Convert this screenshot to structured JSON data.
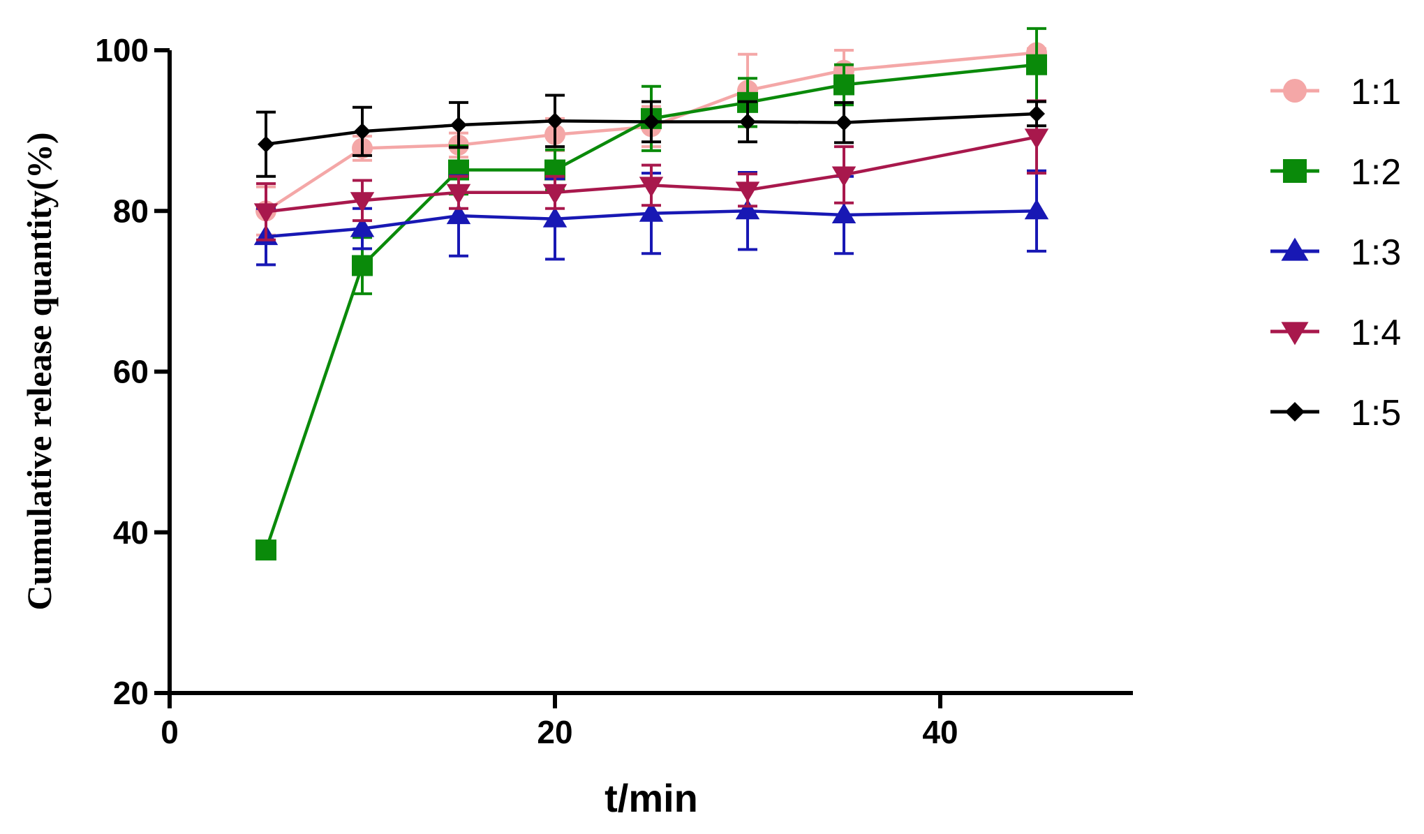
{
  "chart_data": {
    "type": "line",
    "title": "",
    "xlabel": "t/min",
    "ylabel": "Cumulative release quantity(%)",
    "xlim": [
      0,
      50
    ],
    "ylim": [
      20,
      100
    ],
    "xticks": [
      0,
      20,
      40
    ],
    "yticks": [
      20,
      40,
      60,
      80,
      100
    ],
    "grid": false,
    "legend_position": "right",
    "x": [
      5,
      10,
      15,
      20,
      25,
      30,
      35,
      45
    ],
    "series": [
      {
        "name": "1:1",
        "color": "#f4a7a7",
        "marker": "circle",
        "values": [
          80.0,
          87.8,
          88.2,
          89.5,
          90.5,
          95.0,
          97.5,
          99.7
        ],
        "errors": [
          3.0,
          1.5,
          1.5,
          2.0,
          2.5,
          4.5,
          2.5,
          0.5
        ]
      },
      {
        "name": "1:2",
        "color": "#0a8a0a",
        "marker": "square",
        "values": [
          37.8,
          73.2,
          85.1,
          85.1,
          91.5,
          93.5,
          95.7,
          98.2
        ],
        "errors": [
          0.5,
          3.5,
          3.0,
          2.5,
          4.0,
          3.0,
          2.5,
          4.5
        ]
      },
      {
        "name": "1:3",
        "color": "#1818b4",
        "marker": "triangle-up",
        "values": [
          76.8,
          77.8,
          79.4,
          79.0,
          79.7,
          80.0,
          79.5,
          80.0
        ],
        "errors": [
          3.5,
          2.5,
          5.0,
          5.0,
          5.0,
          4.8,
          4.8,
          5.0
        ]
      },
      {
        "name": "1:4",
        "color": "#a8184c",
        "marker": "triangle-down",
        "values": [
          79.9,
          81.3,
          82.3,
          82.3,
          83.2,
          82.6,
          84.5,
          89.2
        ],
        "errors": [
          3.5,
          2.5,
          2.0,
          2.0,
          2.5,
          2.0,
          3.5,
          4.5
        ]
      },
      {
        "name": "1:5",
        "color": "#000000",
        "marker": "diamond",
        "values": [
          88.3,
          89.9,
          90.7,
          91.2,
          91.1,
          91.1,
          91.0,
          92.1
        ],
        "errors": [
          4.0,
          3.0,
          2.8,
          3.2,
          2.5,
          2.5,
          2.5,
          1.5
        ]
      }
    ]
  }
}
